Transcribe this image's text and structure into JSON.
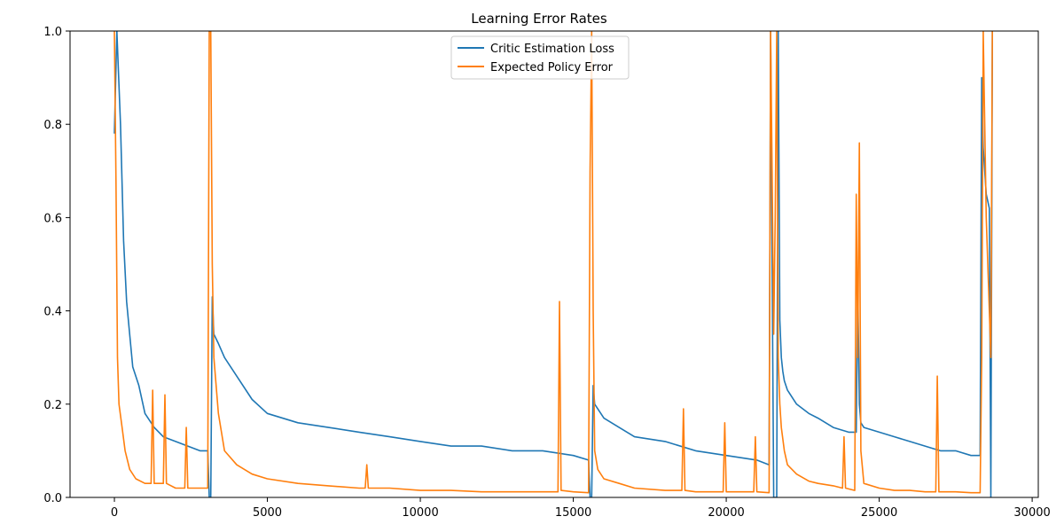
{
  "chart_data": {
    "type": "line",
    "title": "Learning Error Rates",
    "xlabel": "",
    "ylabel": "",
    "xlim": [
      -1450,
      30200
    ],
    "ylim": [
      0,
      1.0
    ],
    "xticks": [
      0,
      5000,
      10000,
      15000,
      20000,
      25000,
      30000
    ],
    "yticks": [
      0.0,
      0.2,
      0.4,
      0.6,
      0.8,
      1.0
    ],
    "ytick_labels": [
      "0.0",
      "0.2",
      "0.4",
      "0.6",
      "0.8",
      "1.0"
    ],
    "grid": false,
    "legend_position": "top-center",
    "series": [
      {
        "name": "Critic Estimation Loss",
        "color": "#1f77b4",
        "x": [
          0,
          80,
          200,
          300,
          400,
          600,
          800,
          1000,
          1300,
          1600,
          2000,
          2400,
          2800,
          3050,
          3100,
          3150,
          3200,
          3250,
          3400,
          3600,
          4000,
          4500,
          5000,
          6000,
          7000,
          8000,
          9000,
          10000,
          11000,
          12000,
          13000,
          14000,
          15000,
          15500,
          15550,
          15600,
          15650,
          15700,
          16000,
          16500,
          17000,
          18000,
          19000,
          20000,
          21000,
          21400,
          21450,
          21500,
          21550,
          21600,
          21650,
          21700,
          21750,
          21800,
          21850,
          21900,
          22000,
          22300,
          22700,
          23000,
          23500,
          24000,
          24250,
          24300,
          24350,
          24400,
          24500,
          25000,
          25500,
          26000,
          26500,
          27000,
          27500,
          28000,
          28300,
          28350,
          28400,
          28450,
          28500,
          28600,
          28650,
          28700
        ],
        "values": [
          0.78,
          1.0,
          0.8,
          0.55,
          0.42,
          0.28,
          0.24,
          0.18,
          0.15,
          0.13,
          0.12,
          0.11,
          0.1,
          0.1,
          0.0,
          0.0,
          0.43,
          0.35,
          0.33,
          0.3,
          0.26,
          0.21,
          0.18,
          0.16,
          0.15,
          0.14,
          0.13,
          0.12,
          0.11,
          0.11,
          0.1,
          0.1,
          0.09,
          0.08,
          0.0,
          0.0,
          0.24,
          0.2,
          0.17,
          0.15,
          0.13,
          0.12,
          0.1,
          0.09,
          0.08,
          0.07,
          1.0,
          0.5,
          0.0,
          0.0,
          0.0,
          1.0,
          0.38,
          0.3,
          0.27,
          0.25,
          0.23,
          0.2,
          0.18,
          0.17,
          0.15,
          0.14,
          0.14,
          0.45,
          0.2,
          0.16,
          0.15,
          0.14,
          0.13,
          0.12,
          0.11,
          0.1,
          0.1,
          0.09,
          0.09,
          0.9,
          0.75,
          0.7,
          0.65,
          0.62,
          0.0,
          1.0
        ]
      },
      {
        "name": "Expected Policy Error",
        "color": "#ff7f0e",
        "x": [
          0,
          50,
          100,
          150,
          250,
          350,
          500,
          700,
          1000,
          1200,
          1250,
          1300,
          1600,
          1650,
          1700,
          2000,
          2300,
          2350,
          2400,
          2800,
          3050,
          3100,
          3150,
          3200,
          3250,
          3400,
          3600,
          4000,
          4500,
          5000,
          6000,
          7000,
          8000,
          8200,
          8250,
          8300,
          9000,
          10000,
          11000,
          12000,
          13000,
          14000,
          14500,
          14550,
          14600,
          15000,
          15500,
          15550,
          15600,
          15650,
          15700,
          15800,
          16000,
          16500,
          17000,
          18000,
          18550,
          18600,
          18650,
          19000,
          19900,
          19950,
          20000,
          20500,
          20900,
          20950,
          21000,
          21400,
          21450,
          21500,
          21550,
          21600,
          21650,
          21700,
          21750,
          21800,
          21900,
          22000,
          22300,
          22700,
          23000,
          23500,
          23800,
          23850,
          23900,
          24200,
          24250,
          24300,
          24350,
          24400,
          24500,
          25000,
          25500,
          26000,
          26500,
          26850,
          26900,
          26950,
          27500,
          28000,
          28300,
          28350,
          28400,
          28450,
          28500,
          28600,
          28650,
          28700
        ],
        "values": [
          1.0,
          0.68,
          0.3,
          0.2,
          0.15,
          0.1,
          0.06,
          0.04,
          0.03,
          0.03,
          0.23,
          0.03,
          0.03,
          0.22,
          0.03,
          0.02,
          0.02,
          0.15,
          0.02,
          0.02,
          0.02,
          1.0,
          1.0,
          0.5,
          0.3,
          0.18,
          0.1,
          0.07,
          0.05,
          0.04,
          0.03,
          0.025,
          0.02,
          0.02,
          0.07,
          0.02,
          0.02,
          0.015,
          0.015,
          0.012,
          0.012,
          0.012,
          0.012,
          0.42,
          0.015,
          0.012,
          0.01,
          0.7,
          1.0,
          0.4,
          0.1,
          0.06,
          0.04,
          0.03,
          0.02,
          0.015,
          0.015,
          0.19,
          0.015,
          0.012,
          0.012,
          0.16,
          0.012,
          0.012,
          0.012,
          0.13,
          0.012,
          0.01,
          1.0,
          0.7,
          0.35,
          0.6,
          1.0,
          0.3,
          0.2,
          0.15,
          0.1,
          0.07,
          0.05,
          0.035,
          0.03,
          0.025,
          0.02,
          0.13,
          0.02,
          0.015,
          0.65,
          0.3,
          0.76,
          0.1,
          0.03,
          0.02,
          0.015,
          0.015,
          0.012,
          0.012,
          0.26,
          0.012,
          0.012,
          0.01,
          0.01,
          0.3,
          1.0,
          0.8,
          0.6,
          0.4,
          0.3,
          1.0
        ]
      }
    ]
  }
}
